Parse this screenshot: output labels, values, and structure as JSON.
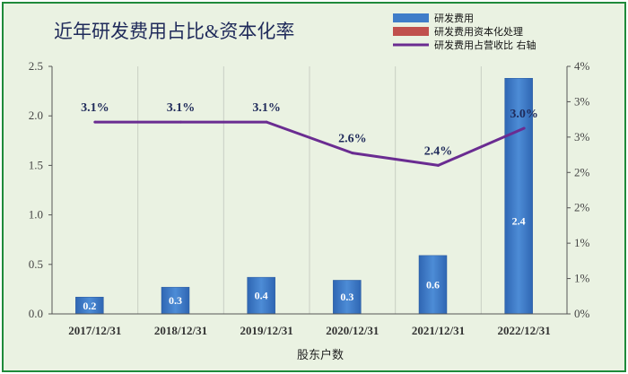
{
  "chart_data": {
    "type": "bar",
    "title": "近年研发费用占比&资本化率",
    "xlabel": "股东户数",
    "categories": [
      "2017/12/31",
      "2018/12/31",
      "2019/12/31",
      "2020/12/31",
      "2021/12/31",
      "2022/12/31"
    ],
    "y_left": {
      "lim": [
        0,
        2.5
      ],
      "ticks": [
        "0.0",
        "0.5",
        "1.0",
        "1.5",
        "2.0",
        "2.5"
      ]
    },
    "y_right": {
      "lim": [
        0,
        4
      ],
      "ticks": [
        "0%",
        "1%",
        "1%",
        "2%",
        "2%",
        "3%",
        "3%",
        "4%"
      ]
    },
    "series": [
      {
        "name": "研发费用",
        "type": "bar",
        "axis": "left",
        "color": "#3f7dc9",
        "values": [
          0.17,
          0.27,
          0.37,
          0.34,
          0.59,
          2.38
        ],
        "labels": [
          "0.2",
          "0.3",
          "0.4",
          "0.3",
          "0.6",
          "2.4"
        ]
      },
      {
        "name": "研发费用资本化处理",
        "type": "bar",
        "axis": "left",
        "color": "#c0504d",
        "values": [
          0,
          0,
          0,
          0,
          0,
          0
        ]
      },
      {
        "name": "研发费用占营收比 右轴",
        "type": "line",
        "axis": "right",
        "color": "#6a2c91",
        "values": [
          3.1,
          3.1,
          3.1,
          2.6,
          2.4,
          3.0
        ],
        "labels": [
          "3.1%",
          "3.1%",
          "3.1%",
          "2.6%",
          "2.4%",
          "3.0%"
        ]
      }
    ],
    "legend_position": "top-right",
    "grid": "vertical"
  }
}
